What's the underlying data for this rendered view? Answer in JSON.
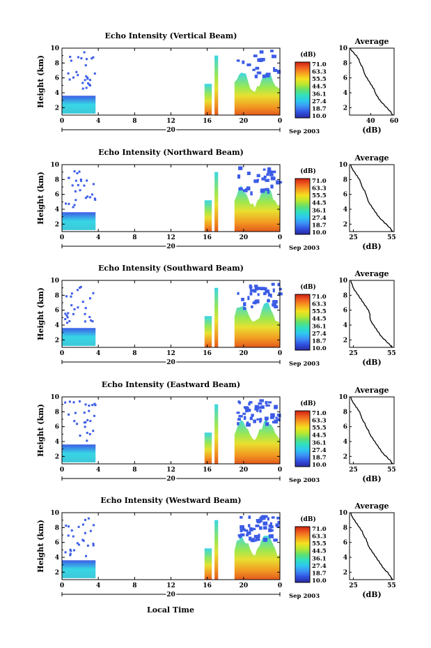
{
  "xlabel": "Local Time",
  "date_label": "Sep 2003",
  "colorbar": {
    "unit": "(dB)",
    "ticks": [
      "71.0",
      "63.3",
      "55.5",
      "44.5",
      "36.1",
      "27.4",
      "18.7",
      "10.0"
    ],
    "colors": [
      "#2a2aa0",
      "#3050e0",
      "#3d8ff5",
      "#2ec7f0",
      "#30e0c0",
      "#60e070",
      "#b8e830",
      "#f5e020",
      "#f7a020",
      "#f06020",
      "#d02010"
    ]
  },
  "echo_colors": {
    "high_blue": "#3c5ce6",
    "low_cyan": "#38d6e6",
    "warm_top": "#e8e030",
    "warm_bottom": "#e35a1c"
  },
  "chart_data": [
    {
      "type": "heatmap",
      "title": "Echo Intensity (Vertical Beam)",
      "ylabel": "Height (km)",
      "x_ticks": [
        "0",
        "4",
        "8",
        "12",
        "16",
        "20",
        "0"
      ],
      "x_date": "20",
      "y_ticks": [
        "2",
        "4",
        "6",
        "8",
        "10"
      ],
      "xlim": [
        0,
        24
      ],
      "ylim": [
        1,
        10
      ],
      "zlim": [
        10.0,
        71.0
      ],
      "average": {
        "title": "Average",
        "xlabel": "(dB)",
        "x_ticks": [
          "40",
          "60"
        ],
        "xlim": [
          22,
          60
        ],
        "heights": [
          10,
          9.5,
          9,
          8.5,
          8,
          7.5,
          7,
          6.5,
          6,
          5.5,
          5,
          4.5,
          4,
          3.5,
          3,
          2.5,
          2,
          1.5,
          1
        ],
        "values": [
          22.5,
          25,
          28,
          30,
          31,
          33,
          34,
          35,
          37,
          39,
          41,
          43,
          44,
          46,
          48,
          51,
          54,
          57,
          59
        ]
      }
    },
    {
      "type": "heatmap",
      "title": "Echo Intensity (Northward Beam)",
      "ylabel": "Height (km)",
      "x_ticks": [
        "0",
        "4",
        "8",
        "12",
        "16",
        "20",
        "0"
      ],
      "x_date": "20",
      "y_ticks": [
        "2",
        "4",
        "6",
        "8",
        "10"
      ],
      "xlim": [
        0,
        24
      ],
      "ylim": [
        1,
        10
      ],
      "zlim": [
        10.0,
        71.0
      ],
      "average": {
        "title": "Average",
        "xlabel": "(dB)",
        "x_ticks": [
          "25",
          "55"
        ],
        "xlim": [
          22,
          57
        ],
        "heights": [
          10,
          9.5,
          9,
          8.5,
          8,
          7.5,
          7,
          6.5,
          6,
          5.5,
          5,
          4.5,
          4,
          3.5,
          3,
          2.5,
          2,
          1.5,
          1
        ],
        "values": [
          23,
          24,
          26,
          28,
          30,
          31,
          32,
          34,
          35,
          36,
          37,
          39,
          41,
          43,
          45,
          48,
          51,
          54,
          56
        ]
      }
    },
    {
      "type": "heatmap",
      "title": "Echo Intensity (Southward Beam)",
      "ylabel": "Height (km)",
      "x_ticks": [
        "0",
        "4",
        "8",
        "12",
        "16",
        "20",
        "0"
      ],
      "x_date": "20",
      "y_ticks": [
        "2",
        "4",
        "6",
        "8",
        "10"
      ],
      "xlim": [
        0,
        24
      ],
      "ylim": [
        1,
        10
      ],
      "zlim": [
        10.0,
        71.0
      ],
      "average": {
        "title": "Average",
        "xlabel": "(dB)",
        "x_ticks": [
          "25",
          "55"
        ],
        "xlim": [
          22,
          57
        ],
        "heights": [
          10,
          9.5,
          9,
          8.5,
          8,
          7.5,
          7,
          6.5,
          6,
          5.5,
          5,
          4.5,
          4,
          3.5,
          3,
          2.5,
          2,
          1.5,
          1
        ],
        "values": [
          23,
          24,
          25,
          27,
          29,
          31,
          33,
          35,
          37,
          38,
          38,
          39,
          41,
          43,
          45,
          47,
          50,
          53,
          56
        ]
      }
    },
    {
      "type": "heatmap",
      "title": "Echo Intensity (Eastward Beam)",
      "ylabel": "Height (km)",
      "x_ticks": [
        "0",
        "4",
        "8",
        "12",
        "16",
        "20",
        "0"
      ],
      "x_date": "20",
      "y_ticks": [
        "2",
        "4",
        "6",
        "8",
        "10"
      ],
      "xlim": [
        0,
        24
      ],
      "ylim": [
        1,
        10
      ],
      "zlim": [
        10.0,
        71.0
      ],
      "average": {
        "title": "Average",
        "xlabel": "(dB)",
        "x_ticks": [
          "25",
          "55"
        ],
        "xlim": [
          22,
          57
        ],
        "heights": [
          10,
          9.5,
          9,
          8.5,
          8,
          7.5,
          7,
          6.5,
          6,
          5.5,
          5,
          4.5,
          4,
          3.5,
          3,
          2.5,
          2,
          1.5,
          1
        ],
        "values": [
          23,
          24,
          26,
          28,
          30,
          31,
          32,
          34,
          35,
          37,
          38,
          40,
          42,
          44,
          46,
          48,
          51,
          54,
          56
        ]
      }
    },
    {
      "type": "heatmap",
      "title": "Echo Intensity (Westward Beam)",
      "ylabel": "Height (km)",
      "x_ticks": [
        "0",
        "4",
        "8",
        "12",
        "16",
        "20",
        "0"
      ],
      "x_date": "20",
      "y_ticks": [
        "2",
        "4",
        "6",
        "8",
        "10"
      ],
      "xlim": [
        0,
        24
      ],
      "ylim": [
        1,
        10
      ],
      "zlim": [
        10.0,
        71.0
      ],
      "average": {
        "title": "Average",
        "xlabel": "(dB)",
        "x_ticks": [
          "25",
          "55"
        ],
        "xlim": [
          22,
          57
        ],
        "heights": [
          10,
          9.5,
          9,
          8.5,
          8,
          7.5,
          7,
          6.5,
          6,
          5.5,
          5,
          4.5,
          4,
          3.5,
          3,
          2.5,
          2,
          1.5,
          1
        ],
        "values": [
          23,
          24,
          26,
          28,
          30,
          32,
          33,
          35,
          36,
          37,
          39,
          41,
          43,
          45,
          47,
          49,
          52,
          54,
          56
        ]
      }
    }
  ]
}
